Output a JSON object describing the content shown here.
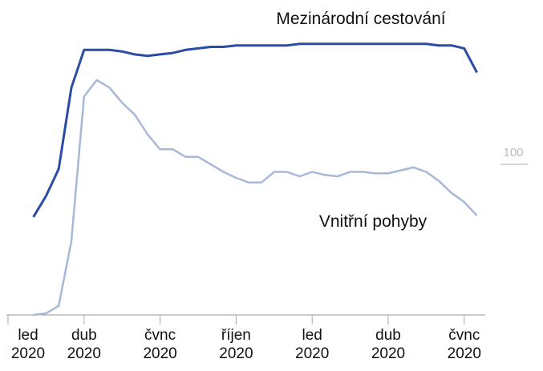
{
  "chart_data": {
    "type": "line",
    "categories": [
      "led 2020",
      null,
      null,
      null,
      null,
      null,
      "dub 2020",
      null,
      null,
      null,
      null,
      null,
      "čvnc 2020",
      null,
      null,
      null,
      null,
      null,
      "říjen 2020",
      null,
      null,
      null,
      null,
      null,
      "led 2020",
      null,
      null,
      null,
      null,
      null,
      "dub 2020",
      null,
      null,
      null,
      null,
      null,
      "čvnc 2020",
      null
    ],
    "series": [
      {
        "name": "Mezinárodní cestování",
        "color": "#2b4ba5",
        "values": [
          null,
          null,
          65,
          79,
          97,
          151,
          176,
          176,
          176,
          175,
          173,
          172,
          173,
          174,
          176,
          177,
          178,
          178,
          179,
          179,
          179,
          179,
          179,
          180,
          180,
          180,
          180,
          180,
          180,
          180,
          180,
          180,
          180,
          180,
          179,
          179,
          177,
          161
        ]
      },
      {
        "name": "Vnitřní pohyby",
        "color": "#a8b8d8",
        "values": [
          null,
          null,
          0,
          1,
          6,
          49,
          145,
          156,
          151,
          141,
          133,
          120,
          110,
          110,
          105,
          105,
          100,
          95,
          91,
          88,
          88,
          95,
          95,
          92,
          95,
          93,
          92,
          95,
          95,
          94,
          94,
          96,
          98,
          95,
          89,
          81,
          75,
          66
        ]
      }
    ],
    "ylim": [
      0,
      190
    ],
    "yticks": [
      100
    ]
  }
}
